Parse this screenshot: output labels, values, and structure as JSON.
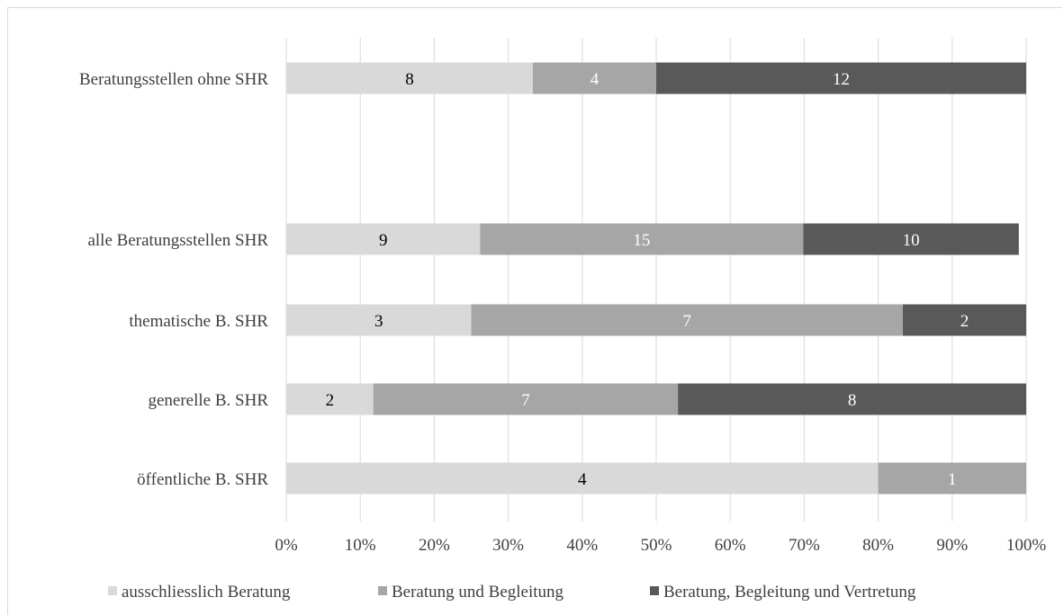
{
  "chart_data": {
    "type": "bar",
    "orientation": "horizontal",
    "stacked": "percent",
    "categories": [
      "Beratungsstellen ohne SHR",
      "alle Beratungsstellen SHR",
      "thematische B. SHR",
      "generelle B. SHR",
      "öffentliche B. SHR"
    ],
    "series": [
      {
        "name": "ausschliesslich Beratung",
        "color": "#d9d9d9",
        "label_color": "#000000",
        "values": [
          8,
          9,
          3,
          2,
          4
        ]
      },
      {
        "name": "Beratung und Begleitung",
        "color": "#a6a6a6",
        "label_color": "#ffffff",
        "values": [
          4,
          15,
          7,
          7,
          1
        ]
      },
      {
        "name": "Beratung, Begleitung und Vertretung",
        "color": "#595959",
        "label_color": "#ffffff",
        "values": [
          12,
          10,
          2,
          8,
          0
        ]
      }
    ],
    "percent_totals": [
      100,
      99,
      100,
      100,
      100
    ],
    "xlim": [
      0,
      100
    ],
    "x_ticks": [
      "0%",
      "10%",
      "20%",
      "30%",
      "40%",
      "50%",
      "60%",
      "70%",
      "80%",
      "90%",
      "100%"
    ],
    "grid": true,
    "legend_position": "bottom"
  }
}
